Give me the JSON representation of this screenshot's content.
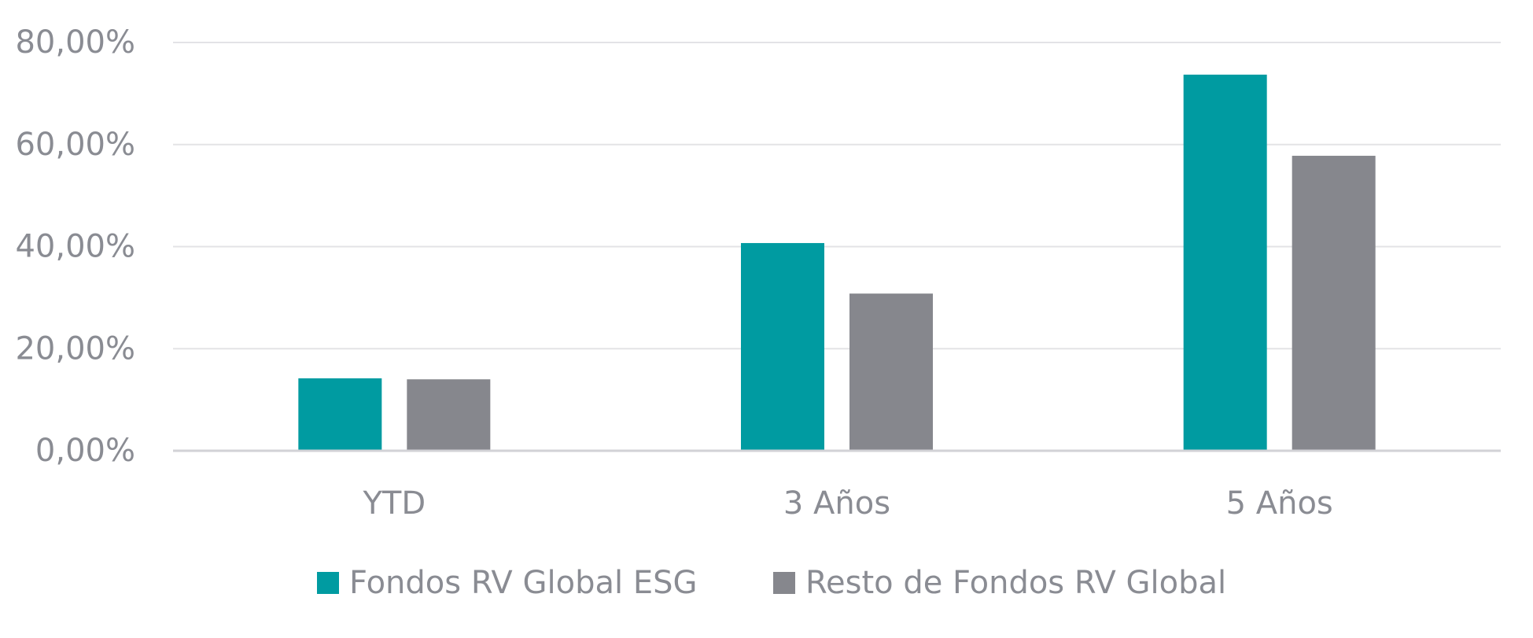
{
  "chart_data": {
    "type": "bar",
    "title": "",
    "xlabel": "",
    "ylabel": "",
    "categories": [
      "YTD",
      "3 Años",
      "5 Años"
    ],
    "series": [
      {
        "name": "Fondos RV Global ESG",
        "color": "#009BA1",
        "values": [
          14.2,
          40.7,
          73.7
        ]
      },
      {
        "name": "Resto de Fondos RV Global",
        "color": "#86878D",
        "values": [
          14.0,
          30.8,
          57.8
        ]
      }
    ],
    "ylim": [
      0,
      80
    ],
    "yticks": [
      0,
      20,
      40,
      60,
      80
    ],
    "ytick_labels": [
      "0,00%",
      "20,00%",
      "40,00%",
      "60,00%",
      "80,00%"
    ],
    "grid": true,
    "legend_position": "bottom"
  }
}
